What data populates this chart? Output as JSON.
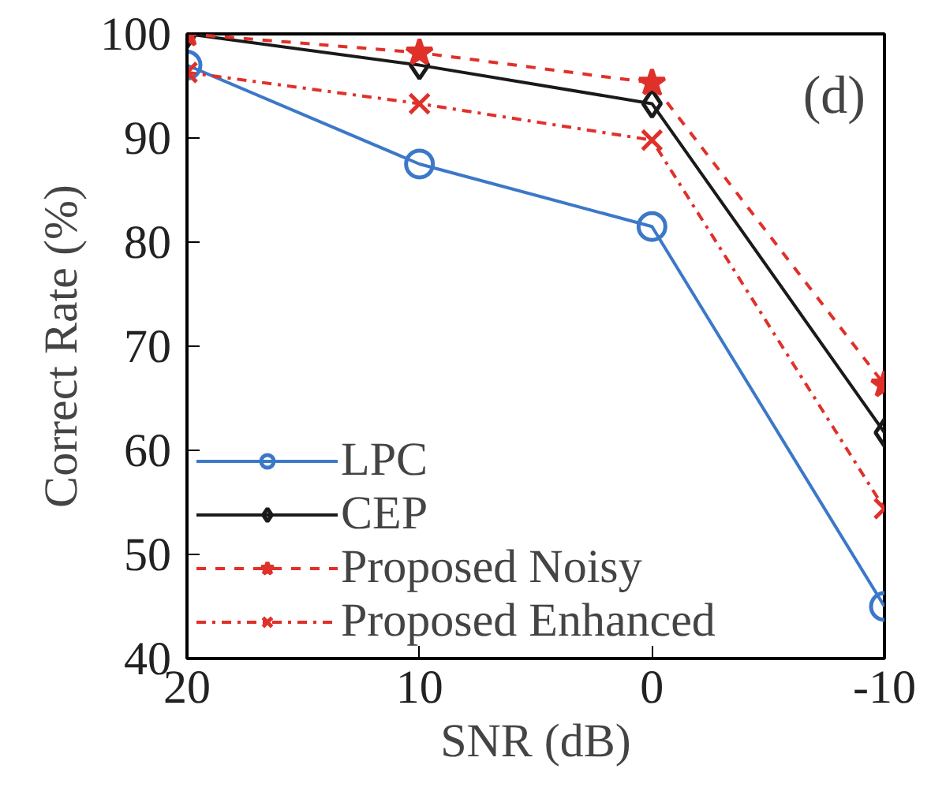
{
  "chart_data": {
    "type": "line",
    "xlabel": "SNR (dB)",
    "ylabel": "Correct Rate (%)",
    "x": [
      20,
      10,
      0,
      -10
    ],
    "xlim": [
      20,
      -10
    ],
    "xticks": [
      20,
      10,
      0,
      -10
    ],
    "ylim": [
      40,
      100
    ],
    "yticks": [
      40,
      50,
      60,
      70,
      80,
      90,
      100
    ],
    "grid": false,
    "legend": "bottom left",
    "annotations": [
      "(d)"
    ],
    "series": [
      {
        "name": "LPC",
        "color": "#3c78c8",
        "marker": "circle",
        "line_style": "solid",
        "values": [
          97,
          87.5,
          81.5,
          45
        ]
      },
      {
        "name": "CEP",
        "color": "#1a1a1a",
        "marker": "diamond",
        "line_style": "solid",
        "values": [
          100,
          97,
          93.3,
          61.7
        ]
      },
      {
        "name": "Proposed Noisy",
        "color": "#e0302a",
        "marker": "star",
        "line_style": "dashed",
        "values": [
          100,
          98.2,
          95.3,
          66.3
        ]
      },
      {
        "name": "Proposed Enhanced",
        "color": "#e0302a",
        "marker": "cross",
        "line_style": "dashdot",
        "values": [
          96.3,
          93.3,
          89.8,
          54.4
        ]
      }
    ]
  }
}
